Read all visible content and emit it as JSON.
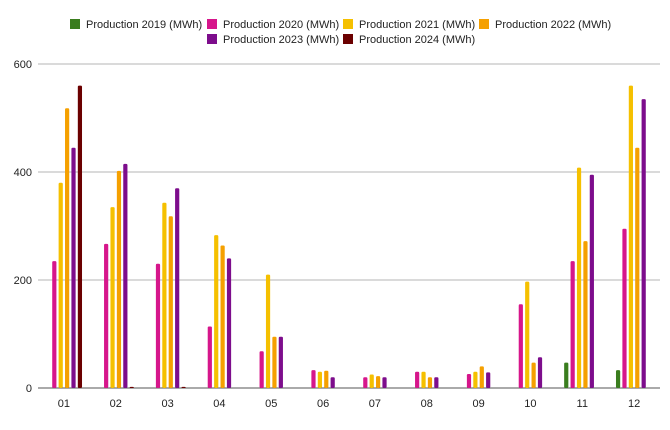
{
  "chart_data": {
    "type": "bar",
    "categories": [
      "01",
      "02",
      "03",
      "04",
      "05",
      "06",
      "07",
      "08",
      "09",
      "10",
      "11",
      "12"
    ],
    "ylim": [
      0,
      600
    ],
    "yticks": [
      0,
      200,
      400,
      600
    ],
    "grid": true,
    "legend_position": "top",
    "xlabel": "",
    "ylabel": "",
    "series": [
      {
        "name": "Production 2019 (MWh)",
        "color": "#3a7d1e",
        "values": [
          null,
          null,
          null,
          null,
          null,
          null,
          null,
          null,
          null,
          null,
          47,
          33
        ]
      },
      {
        "name": "Production 2020 (MWh)",
        "color": "#d6168b",
        "values": [
          235,
          267,
          230,
          114,
          68,
          33,
          20,
          30,
          26,
          155,
          235,
          295
        ]
      },
      {
        "name": "Production 2021 (MWh)",
        "color": "#f5c000",
        "values": [
          380,
          335,
          343,
          283,
          210,
          30,
          25,
          30,
          30,
          197,
          408,
          560
        ]
      },
      {
        "name": "Production 2022 (MWh)",
        "color": "#f5a000",
        "values": [
          518,
          402,
          318,
          264,
          95,
          32,
          22,
          20,
          40,
          47,
          272,
          445
        ]
      },
      {
        "name": "Production 2023 (MWh)",
        "color": "#7d0d8c",
        "values": [
          445,
          415,
          370,
          240,
          95,
          20,
          20,
          20,
          29,
          57,
          395,
          535
        ]
      },
      {
        "name": "Production 2024 (MWh)",
        "color": "#6b0000",
        "values": [
          560,
          2,
          2,
          null,
          null,
          null,
          null,
          null,
          null,
          null,
          null,
          null
        ]
      }
    ]
  }
}
